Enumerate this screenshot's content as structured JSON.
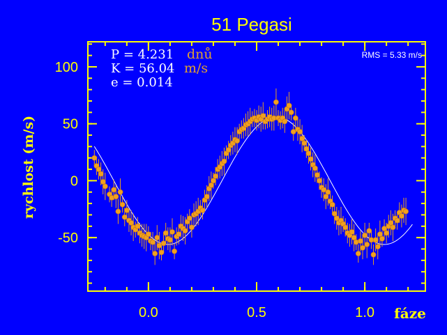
{
  "chart_data": {
    "type": "scatter",
    "title": "51 Pegasi",
    "xlabel": "fáze",
    "ylabel": "rychlost (m/s)",
    "xlim": [
      -0.28,
      1.28
    ],
    "ylim": [
      -97,
      122
    ],
    "xticks": [
      0.0,
      0.5,
      1.0
    ],
    "xtick_labels": [
      "0.0",
      "0.5",
      "1.0"
    ],
    "yticks": [
      -50,
      0,
      50,
      100
    ],
    "ytick_labels": [
      "-50",
      "0",
      "50",
      "100"
    ],
    "grid": false,
    "annotations": {
      "p_label": "P = 4.231",
      "p_unit": "dnů",
      "k_label": "K = 56.04",
      "k_unit": "m/s",
      "e_label": "e = 0.014",
      "rms": "RMS = 5.33 m/s"
    },
    "fit": {
      "name": "",
      "period": 4.231,
      "K": 56.04,
      "e": 0.014,
      "phase_of_max": 0.59
    },
    "series": [
      {
        "name": "",
        "points": [
          [
            -0.25,
            20
          ],
          [
            -0.24,
            13
          ],
          [
            -0.23,
            10
          ],
          [
            -0.22,
            6
          ],
          [
            -0.21,
            -1
          ],
          [
            -0.2,
            -5
          ],
          [
            -0.18,
            -12
          ],
          [
            -0.17,
            -15
          ],
          [
            -0.16,
            -8
          ],
          [
            -0.15,
            -14
          ],
          [
            -0.14,
            -27
          ],
          [
            -0.13,
            -10
          ],
          [
            -0.12,
            -21
          ],
          [
            -0.11,
            -32
          ],
          [
            -0.1,
            -26
          ],
          [
            -0.09,
            -35
          ],
          [
            -0.08,
            -37
          ],
          [
            -0.07,
            -41
          ],
          [
            -0.06,
            -43
          ],
          [
            -0.05,
            -40
          ],
          [
            -0.04,
            -46
          ],
          [
            -0.03,
            -48
          ],
          [
            -0.02,
            -49
          ],
          [
            -0.01,
            -50
          ],
          [
            0.0,
            -47
          ],
          [
            0.01,
            -53
          ],
          [
            0.02,
            -54
          ],
          [
            0.03,
            -64
          ],
          [
            0.04,
            -50
          ],
          [
            0.05,
            -57
          ],
          [
            0.06,
            -63
          ],
          [
            0.07,
            -55
          ],
          [
            0.08,
            -46
          ],
          [
            0.09,
            -51
          ],
          [
            0.1,
            -52
          ],
          [
            0.11,
            -45
          ],
          [
            0.12,
            -62
          ],
          [
            0.13,
            -49
          ],
          [
            0.14,
            -47
          ],
          [
            0.15,
            -40
          ],
          [
            0.16,
            -42
          ],
          [
            0.17,
            -44
          ],
          [
            0.18,
            -36
          ],
          [
            0.19,
            -33
          ],
          [
            0.2,
            -41
          ],
          [
            0.21,
            -30
          ],
          [
            0.22,
            -29
          ],
          [
            0.23,
            -27
          ],
          [
            0.24,
            -24
          ],
          [
            0.25,
            -26
          ],
          [
            0.26,
            -17
          ],
          [
            0.27,
            -14
          ],
          [
            0.28,
            -7
          ],
          [
            0.29,
            -4
          ],
          [
            0.3,
            0
          ],
          [
            0.31,
            4
          ],
          [
            0.32,
            10
          ],
          [
            0.33,
            12
          ],
          [
            0.34,
            15
          ],
          [
            0.35,
            17
          ],
          [
            0.36,
            24
          ],
          [
            0.37,
            27
          ],
          [
            0.38,
            31
          ],
          [
            0.39,
            33
          ],
          [
            0.4,
            36
          ],
          [
            0.41,
            35
          ],
          [
            0.42,
            43
          ],
          [
            0.43,
            45
          ],
          [
            0.44,
            46
          ],
          [
            0.45,
            49
          ],
          [
            0.46,
            50
          ],
          [
            0.47,
            52
          ],
          [
            0.48,
            54
          ],
          [
            0.49,
            55
          ],
          [
            0.5,
            53
          ],
          [
            0.51,
            56
          ],
          [
            0.52,
            54
          ],
          [
            0.53,
            57
          ],
          [
            0.54,
            52
          ],
          [
            0.55,
            54
          ],
          [
            0.56,
            56
          ],
          [
            0.57,
            54
          ],
          [
            0.58,
            55
          ],
          [
            0.59,
            69
          ],
          [
            0.6,
            55
          ],
          [
            0.61,
            53
          ],
          [
            0.62,
            55
          ],
          [
            0.63,
            52
          ],
          [
            0.64,
            63
          ],
          [
            0.65,
            66
          ],
          [
            0.66,
            60
          ],
          [
            0.67,
            43
          ],
          [
            0.68,
            55
          ],
          [
            0.69,
            45
          ],
          [
            0.7,
            43
          ],
          [
            0.71,
            37
          ],
          [
            0.72,
            33
          ],
          [
            0.73,
            28
          ],
          [
            0.74,
            24
          ],
          [
            0.75,
            19
          ],
          [
            0.76,
            14
          ],
          [
            0.77,
            11
          ],
          [
            0.78,
            5
          ],
          [
            0.79,
            0
          ],
          [
            0.8,
            -6
          ],
          [
            0.81,
            -8
          ],
          [
            0.82,
            -14
          ],
          [
            0.83,
            -10
          ],
          [
            0.84,
            -18
          ],
          [
            0.85,
            -21
          ],
          [
            0.86,
            -29
          ],
          [
            0.87,
            -33
          ],
          [
            0.88,
            -37
          ],
          [
            0.89,
            -35
          ],
          [
            0.9,
            -38
          ],
          [
            0.91,
            -41
          ],
          [
            0.92,
            -46
          ],
          [
            0.93,
            -48
          ],
          [
            0.94,
            -45
          ],
          [
            0.95,
            -50
          ],
          [
            0.96,
            -54
          ],
          [
            0.97,
            -64
          ],
          [
            0.98,
            -53
          ],
          [
            0.99,
            -59
          ],
          [
            1.0,
            -48
          ],
          [
            1.01,
            -56
          ],
          [
            1.02,
            -44
          ],
          [
            1.03,
            -52
          ],
          [
            1.04,
            -65
          ],
          [
            1.05,
            -52
          ],
          [
            1.06,
            -58
          ],
          [
            1.07,
            -47
          ],
          [
            1.08,
            -51
          ],
          [
            1.09,
            -42
          ],
          [
            1.1,
            -46
          ],
          [
            1.11,
            -40
          ],
          [
            1.12,
            -37
          ],
          [
            1.13,
            -41
          ],
          [
            1.14,
            -33
          ],
          [
            1.15,
            -35
          ],
          [
            1.16,
            -28
          ],
          [
            1.17,
            -31
          ],
          [
            1.18,
            -26
          ],
          [
            1.19,
            -27
          ]
        ]
      }
    ]
  }
}
